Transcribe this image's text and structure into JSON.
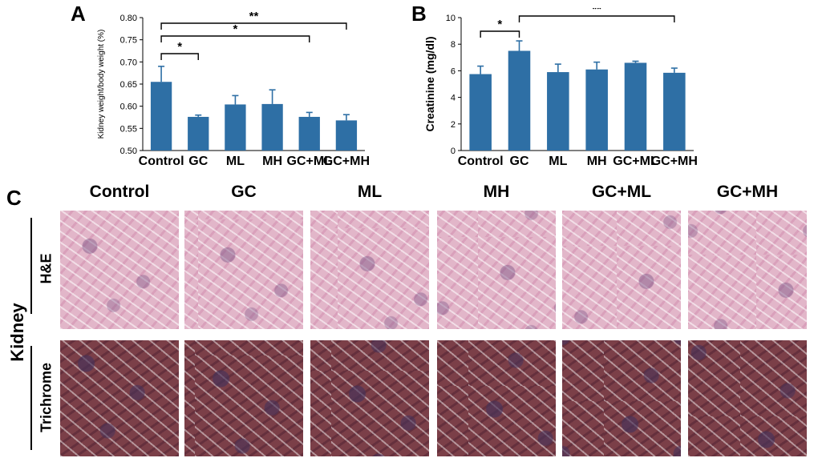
{
  "panels": {
    "a_label": "A",
    "b_label": "B",
    "c_label": "C"
  },
  "colors": {
    "bar": "#2e6fa5",
    "axis": "#000000"
  },
  "chart_data": [
    {
      "type": "bar",
      "title": "",
      "xlabel": "",
      "ylabel": "Kidney weight/body weight (%)",
      "categories": [
        "Control",
        "GC",
        "ML",
        "MH",
        "GC+ML",
        "GC+MH"
      ],
      "values": [
        0.655,
        0.576,
        0.604,
        0.605,
        0.576,
        0.568
      ],
      "errors": [
        0.035,
        0.004,
        0.02,
        0.032,
        0.01,
        0.013
      ],
      "ylim": [
        0.5,
        0.8
      ],
      "yticks": [
        "0.50",
        "0.55",
        "0.60",
        "0.65",
        "0.70",
        "0.75",
        "0.80"
      ],
      "grid": false,
      "significance": [
        {
          "from": "Control",
          "to": "GC",
          "label": "*"
        },
        {
          "from": "Control",
          "to": "GC+ML",
          "label": "*"
        },
        {
          "from": "Control",
          "to": "GC+MH",
          "label": "**"
        }
      ]
    },
    {
      "type": "bar",
      "title": "",
      "xlabel": "",
      "ylabel": "Creatinine (mg/dl)",
      "categories": [
        "Control",
        "GC",
        "ML",
        "MH",
        "GC+ML",
        "GC+MH"
      ],
      "values": [
        5.75,
        7.5,
        5.9,
        6.1,
        6.6,
        5.85
      ],
      "errors": [
        0.6,
        0.75,
        0.6,
        0.55,
        0.12,
        0.35
      ],
      "ylim": [
        0,
        10
      ],
      "yticks": [
        "0",
        "2",
        "4",
        "6",
        "8",
        "10"
      ],
      "grid": false,
      "significance": [
        {
          "from": "Control",
          "to": "GC",
          "label": "*"
        },
        {
          "from": "GC",
          "to": "GC+MH",
          "label": "**"
        }
      ]
    }
  ],
  "histology": {
    "row_group_label": "Kidney",
    "columns": [
      "Control",
      "GC",
      "ML",
      "MH",
      "GC+ML",
      "GC+MH"
    ],
    "rows": [
      "H&E",
      "Trichrome"
    ]
  }
}
